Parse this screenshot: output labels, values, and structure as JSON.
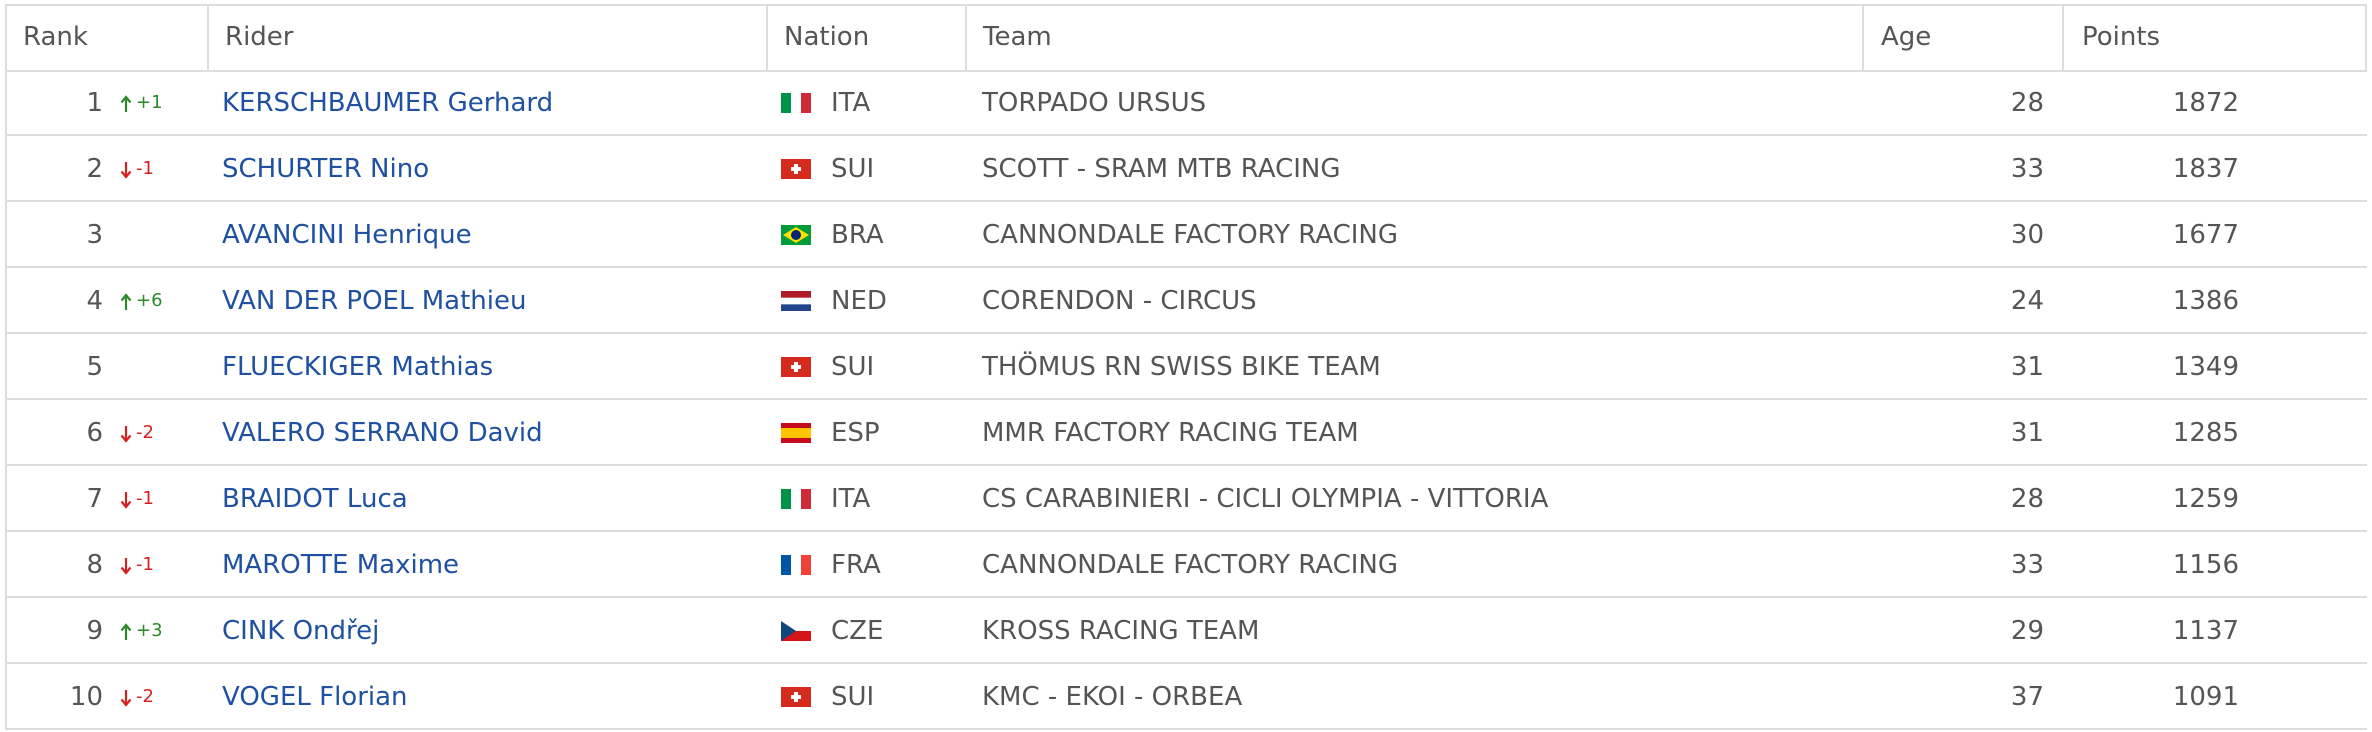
{
  "table": {
    "columns": [
      "Rank",
      "Rider",
      "Nation",
      "Team",
      "Age",
      "Points"
    ],
    "rows": [
      {
        "rank": 1,
        "change": "+1",
        "rider": "KERSCHBAUMER Gerhard",
        "nation": "ITA",
        "team": "TORPADO URSUS",
        "age": 28,
        "points": 1872
      },
      {
        "rank": 2,
        "change": "-1",
        "rider": "SCHURTER Nino",
        "nation": "SUI",
        "team": "SCOTT - SRAM MTB RACING",
        "age": 33,
        "points": 1837
      },
      {
        "rank": 3,
        "rider": "AVANCINI Henrique",
        "nation": "BRA",
        "team": "CANNONDALE FACTORY RACING",
        "age": 30,
        "points": 1677
      },
      {
        "rank": 4,
        "change": "+6",
        "rider": "VAN DER POEL Mathieu",
        "nation": "NED",
        "team": "CORENDON - CIRCUS",
        "age": 24,
        "points": 1386
      },
      {
        "rank": 5,
        "rider": "FLUECKIGER Mathias",
        "nation": "SUI",
        "team": "THÖMUS RN SWISS BIKE TEAM",
        "age": 31,
        "points": 1349
      },
      {
        "rank": 6,
        "change": "-2",
        "rider": "VALERO SERRANO David",
        "nation": "ESP",
        "team": "MMR FACTORY RACING TEAM",
        "age": 31,
        "points": 1285
      },
      {
        "rank": 7,
        "change": "-1",
        "rider": "BRAIDOT Luca",
        "nation": "ITA",
        "team": "CS CARABINIERI - CICLI OLYMPIA - VITTORIA",
        "age": 28,
        "points": 1259
      },
      {
        "rank": 8,
        "change": "-1",
        "rider": "MAROTTE Maxime",
        "nation": "FRA",
        "team": "CANNONDALE FACTORY RACING",
        "age": 33,
        "points": 1156
      },
      {
        "rank": 9,
        "change": "+3",
        "rider": "CINK Ondřej",
        "nation": "CZE",
        "team": "KROSS RACING TEAM",
        "age": 29,
        "points": 1137
      },
      {
        "rank": 10,
        "change": "-2",
        "rider": "VOGEL Florian",
        "nation": "SUI",
        "team": "KMC - EKOI - ORBEA",
        "age": 37,
        "points": 1091
      }
    ]
  }
}
